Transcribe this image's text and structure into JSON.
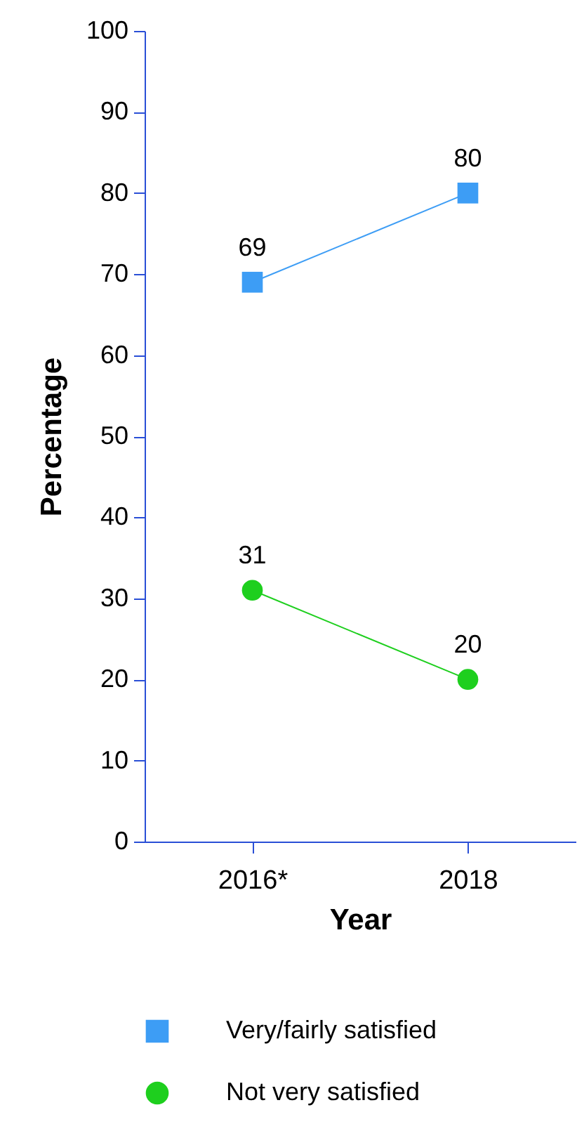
{
  "chart_data": {
    "type": "line",
    "xlabel": "Year",
    "ylabel": "Percentage",
    "categories": [
      "2016*",
      "2018"
    ],
    "series": [
      {
        "name": "Very/fairly satisfied",
        "color": "#3d9df5",
        "values": [
          69,
          80
        ],
        "marker": "square"
      },
      {
        "name": "Not very satisfied",
        "color": "#1ecf1e",
        "values": [
          31,
          20
        ],
        "marker": "circle"
      }
    ],
    "ylim": [
      0,
      100
    ],
    "yticks": [
      0,
      10,
      20,
      30,
      40,
      50,
      60,
      70,
      80,
      90,
      100
    ],
    "grid": false,
    "legend": "bottom",
    "data_labels": true
  }
}
